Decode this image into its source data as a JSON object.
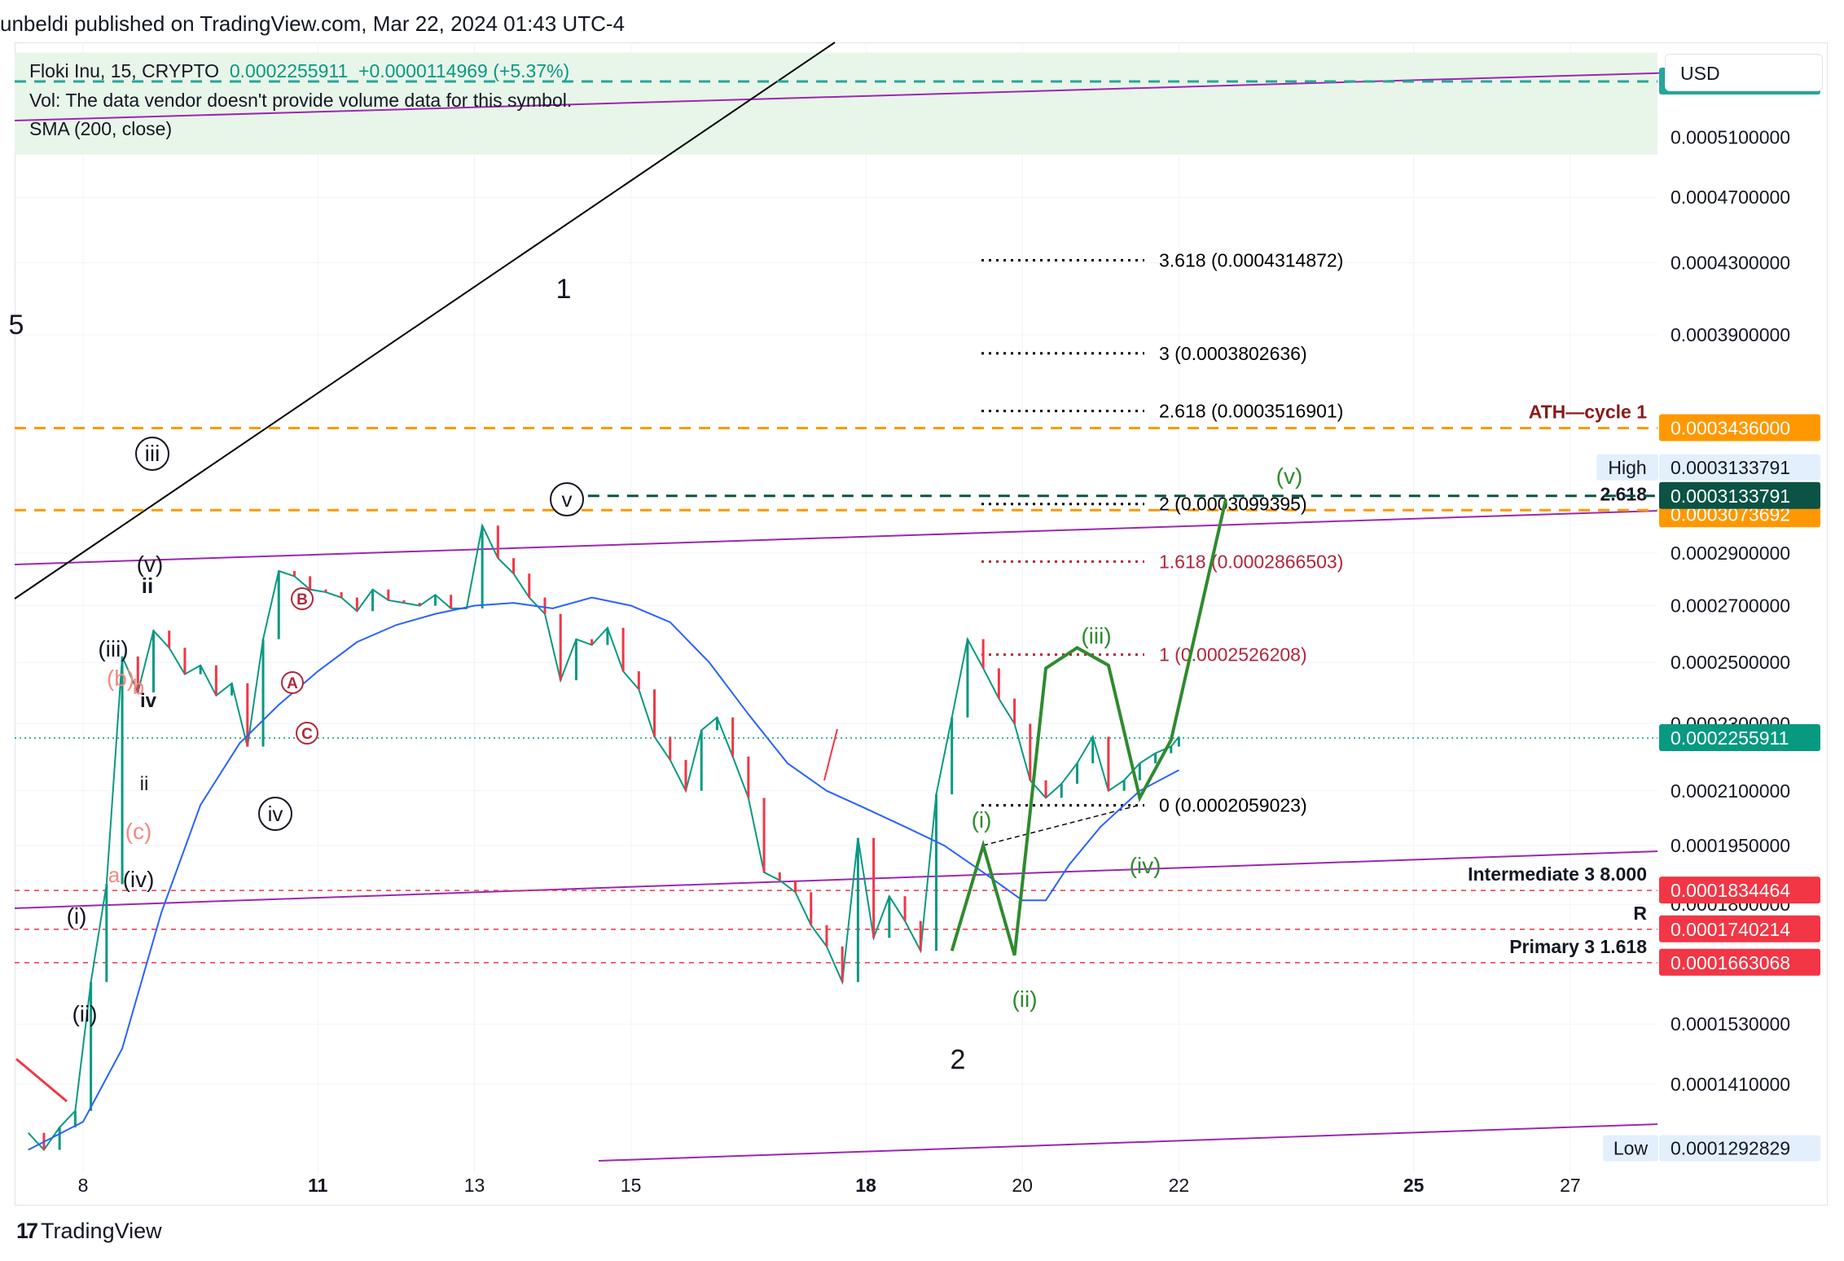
{
  "header": {
    "published": "unbeldi published on TradingView.com, Mar 22, 2024 01:43 UTC-4"
  },
  "legend": {
    "symbol": "Floki Inu, 15, CRYPTO",
    "price": "0.0002255911",
    "change": "+0.0000114969 (+5.37%)",
    "vol": "Vol: The data vendor doesn't provide volume data for this symbol.",
    "sma": "SMA (200, close)"
  },
  "currency_button": "USD",
  "branding": "TradingView",
  "colors": {
    "up": "#089981",
    "down": "#f23645",
    "sma": "#2962ff",
    "channel": "#9c27b0",
    "wave": "#2e8b2e",
    "fib_orange": "#ff9800"
  },
  "chart_data": {
    "type": "line",
    "title": "Floki Inu, 15, CRYPTO",
    "ylim": [
      0.000125,
      0.00058
    ],
    "y_scale": "log",
    "x_ticks": [
      "8",
      "11",
      "13",
      "15",
      "18",
      "20",
      "22",
      "25",
      "27"
    ],
    "y_ticks": [
      "0.0005100000",
      "0.0004700000",
      "0.0004300000",
      "0.0003900000",
      "0.0002900000",
      "0.0002700000",
      "0.0002500000",
      "0.0002300000",
      "0.0002100000",
      "0.0001950000",
      "0.0001800000",
      "0.0001530000",
      "0.0001410000"
    ],
    "price_series": {
      "name": "Price",
      "x": [
        7.3,
        7.5,
        7.7,
        7.9,
        8.1,
        8.3,
        8.5,
        8.7,
        8.9,
        9.1,
        9.3,
        9.5,
        9.7,
        9.9,
        10.1,
        10.3,
        10.5,
        10.7,
        10.9,
        11.1,
        11.3,
        11.5,
        11.7,
        11.9,
        12.1,
        12.3,
        12.5,
        12.7,
        12.9,
        13.1,
        13.3,
        13.5,
        13.7,
        13.9,
        14.1,
        14.3,
        14.5,
        14.7,
        14.9,
        15.1,
        15.3,
        15.5,
        15.7,
        15.9,
        16.1,
        16.3,
        16.5,
        16.7,
        16.9,
        17.1,
        17.3,
        17.5,
        17.7,
        17.9,
        18.1,
        18.3,
        18.5,
        18.7,
        18.9,
        19.1,
        19.3,
        19.5,
        19.7,
        19.9,
        20.1,
        20.3,
        20.5,
        20.7,
        20.9,
        21.1,
        21.3,
        21.5,
        21.7,
        21.9,
        22.0
      ],
      "values": [
        0.000132,
        0.000129,
        0.000133,
        0.000136,
        0.000162,
        0.000185,
        0.000252,
        0.00024,
        0.000261,
        0.000255,
        0.000246,
        0.000249,
        0.000239,
        0.000243,
        0.000223,
        0.000258,
        0.000283,
        0.000281,
        0.000276,
        0.000275,
        0.000273,
        0.000268,
        0.000276,
        0.000272,
        0.000271,
        0.00027,
        0.000274,
        0.000269,
        0.000269,
        0.000301,
        0.000288,
        0.000282,
        0.000273,
        0.000267,
        0.000244,
        0.000258,
        0.000256,
        0.000262,
        0.000247,
        0.000241,
        0.000226,
        0.000219,
        0.00021,
        0.000228,
        0.000232,
        0.00022,
        0.000208,
        0.000188,
        0.000186,
        0.000183,
        0.000175,
        0.00017,
        0.000162,
        0.000197,
        0.000172,
        0.000182,
        0.000176,
        0.000169,
        0.000209,
        0.000232,
        0.000258,
        0.000248,
        0.000238,
        0.00023,
        0.000213,
        0.000208,
        0.000212,
        0.000218,
        0.000226,
        0.00021,
        0.000213,
        0.000218,
        0.000221,
        0.000223,
        0.000226
      ]
    },
    "sma_series": {
      "name": "SMA (200, close)",
      "x": [
        7.3,
        8.0,
        8.5,
        9.0,
        9.5,
        10.0,
        10.5,
        11.0,
        11.5,
        12.0,
        12.5,
        13.0,
        13.5,
        14.0,
        14.5,
        15.0,
        15.5,
        16.0,
        16.5,
        17.0,
        17.5,
        18.0,
        18.5,
        19.0,
        19.5,
        20.0,
        20.3,
        20.6,
        21.0,
        21.5,
        22.0
      ],
      "values": [
        0.000129,
        0.000134,
        0.000148,
        0.000178,
        0.000206,
        0.000224,
        0.000236,
        0.000247,
        0.000257,
        0.000263,
        0.000267,
        0.00027,
        0.000271,
        0.000269,
        0.000273,
        0.00027,
        0.000264,
        0.00025,
        0.000233,
        0.000218,
        0.00021,
        0.000205,
        0.0002,
        0.000195,
        0.000188,
        0.000181,
        0.000181,
        0.00019,
        0.0002,
        0.00021,
        0.000216
      ]
    },
    "wave_path": {
      "x": [
        19.1,
        19.5,
        19.9,
        20.3,
        20.7,
        21.1,
        21.5,
        21.9,
        22.6
      ],
      "values": [
        0.000169,
        0.000195,
        0.000168,
        0.000248,
        0.000255,
        0.000249,
        0.000208,
        0.000225,
        0.000312
      ]
    },
    "fib_levels": [
      {
        "label": "3.618 (0.0004314872)",
        "value": 0.0004314872,
        "color": "#000000"
      },
      {
        "label": "3 (0.0003802636)",
        "value": 0.0003802636,
        "color": "#000000"
      },
      {
        "label": "2.618 (0.0003516901)",
        "value": 0.0003516901,
        "color": "#000000"
      },
      {
        "label": "2 (0.0003099395)",
        "value": 0.0003099395,
        "color": "#000000"
      },
      {
        "label": "1.618 (0.0002866503)",
        "value": 0.0002866503,
        "color": "#b2263a"
      },
      {
        "label": "1 (0.0002526208)",
        "value": 0.0002526208,
        "color": "#b2263a"
      },
      {
        "label": "0 (0.0002059023)",
        "value": 0.0002059023,
        "color": "#000000"
      }
    ],
    "horizontal_levels": [
      {
        "label": "ATH—cycle 1",
        "value": 0.0003436,
        "tag": "0.0003436000",
        "color": "#ff9800"
      },
      {
        "label": "2.618",
        "value": 0.0003073692,
        "tag": "0.0003073692",
        "color": "#ff9800"
      },
      {
        "label": "",
        "value": 0.00055,
        "tag": "0.0005500000",
        "color": "#26a69a"
      },
      {
        "label": "",
        "value": 0.0003133791,
        "tag": "0.0003133791",
        "color": "#0b5345"
      },
      {
        "label": "Intermediate 3 8.000",
        "value": 0.0001834464,
        "tag": "0.0001834464",
        "color": "#f23645"
      },
      {
        "label": "R",
        "value": 0.0001740214,
        "tag": "0.0001740214",
        "color": "#f23645"
      },
      {
        "label": "Primary 3 1.618",
        "value": 0.0001663068,
        "tag": "0.0001663068",
        "color": "#f23645"
      }
    ],
    "price_tags": [
      {
        "label": "High",
        "value": "0.0003133791"
      },
      {
        "label": "Low",
        "value": "0.0001292829"
      },
      {
        "label": "",
        "value": "0.0002255911"
      }
    ],
    "wave_labels": [
      "1",
      "2",
      "iii",
      "v",
      "iv",
      "(v)",
      "ii",
      "(iii)",
      "iv",
      "ii",
      "(iv)",
      "(i)",
      "(ii)",
      "(b)",
      "(c)",
      "a",
      "b",
      "B",
      "A",
      "C",
      "(i)",
      "(ii)",
      "(iii)",
      "(iv)",
      "(v)",
      "5"
    ]
  }
}
